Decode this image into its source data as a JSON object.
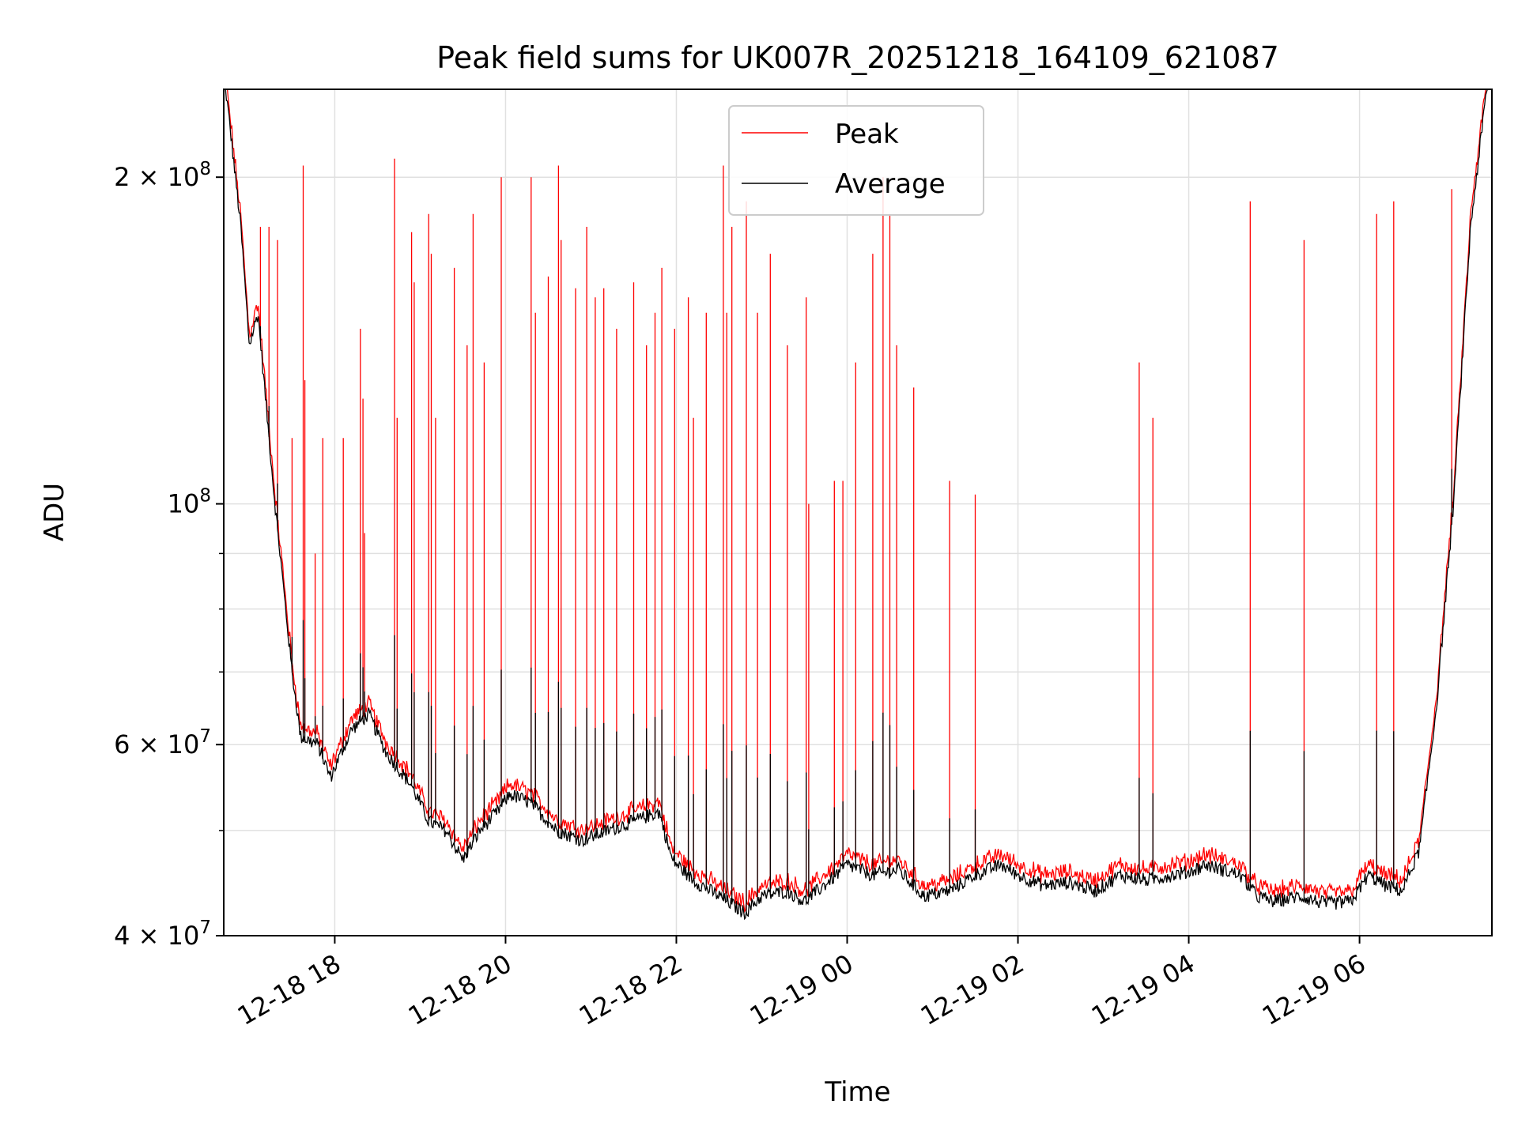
{
  "chart_data": {
    "type": "line",
    "title": "Peak field sums for UK007R_20251218_164109_621087",
    "xlabel": "Time",
    "ylabel": "ADU",
    "yscale": "log",
    "xlim_hours": [
      16.7,
      31.55
    ],
    "ylim": [
      40000000,
      241000000
    ],
    "grid": true,
    "x_ticks": [
      {
        "hour": 18,
        "label": "12-18 18"
      },
      {
        "hour": 20,
        "label": "12-18 20"
      },
      {
        "hour": 22,
        "label": "12-18 22"
      },
      {
        "hour": 24,
        "label": "12-19 00"
      },
      {
        "hour": 26,
        "label": "12-19 02"
      },
      {
        "hour": 28,
        "label": "12-19 04"
      },
      {
        "hour": 30,
        "label": "12-19 06"
      }
    ],
    "y_ticks": [
      {
        "value": 40000000,
        "mant": "4",
        "exp": "7"
      },
      {
        "value": 60000000,
        "mant": "6",
        "exp": "7"
      },
      {
        "value": 100000000,
        "mant": "",
        "exp": "8"
      },
      {
        "value": 200000000,
        "mant": "2",
        "exp": "8"
      }
    ],
    "y_minor_ticks": [
      50000000,
      70000000,
      80000000,
      90000000
    ],
    "legend": {
      "position": "upper center",
      "entries": [
        {
          "name": "Peak",
          "color": "#ff0000"
        },
        {
          "name": "Average",
          "color": "#000000"
        }
      ]
    },
    "average_baseline": [
      [
        16.7,
        250000000
      ],
      [
        16.78,
        220000000
      ],
      [
        16.9,
        180000000
      ],
      [
        17.0,
        140000000
      ],
      [
        17.1,
        150000000
      ],
      [
        17.3,
        100000000
      ],
      [
        17.5,
        70000000
      ],
      [
        17.6,
        61000000
      ],
      [
        17.8,
        60000000
      ],
      [
        17.95,
        56000000
      ],
      [
        18.2,
        62000000
      ],
      [
        18.4,
        64000000
      ],
      [
        18.6,
        59000000
      ],
      [
        18.9,
        55000000
      ],
      [
        19.1,
        51000000
      ],
      [
        19.3,
        50000000
      ],
      [
        19.5,
        47000000
      ],
      [
        19.7,
        50000000
      ],
      [
        19.9,
        52000000
      ],
      [
        20.05,
        54000000
      ],
      [
        20.3,
        53000000
      ],
      [
        20.6,
        50000000
      ],
      [
        20.9,
        49000000
      ],
      [
        21.2,
        50000000
      ],
      [
        21.5,
        51000000
      ],
      [
        21.8,
        52000000
      ],
      [
        21.95,
        47000000
      ],
      [
        22.2,
        45000000
      ],
      [
        22.5,
        43500000
      ],
      [
        22.8,
        42000000
      ],
      [
        23.0,
        43500000
      ],
      [
        23.3,
        44000000
      ],
      [
        23.5,
        43000000
      ],
      [
        23.8,
        45000000
      ],
      [
        24.0,
        46500000
      ],
      [
        24.3,
        45500000
      ],
      [
        24.6,
        46000000
      ],
      [
        24.9,
        43500000
      ],
      [
        25.2,
        44000000
      ],
      [
        25.5,
        45500000
      ],
      [
        25.8,
        46500000
      ],
      [
        26.0,
        45500000
      ],
      [
        26.3,
        44500000
      ],
      [
        26.6,
        44800000
      ],
      [
        26.9,
        44000000
      ],
      [
        27.2,
        45500000
      ],
      [
        27.5,
        45000000
      ],
      [
        27.8,
        45500000
      ],
      [
        28.0,
        45800000
      ],
      [
        28.2,
        46500000
      ],
      [
        28.4,
        46000000
      ],
      [
        28.6,
        45500000
      ],
      [
        28.8,
        43500000
      ],
      [
        29.0,
        43000000
      ],
      [
        29.3,
        43500000
      ],
      [
        29.6,
        42800000
      ],
      [
        29.9,
        43000000
      ],
      [
        30.1,
        45500000
      ],
      [
        30.3,
        44500000
      ],
      [
        30.5,
        44000000
      ],
      [
        30.7,
        48000000
      ],
      [
        30.9,
        65000000
      ],
      [
        31.1,
        100000000
      ],
      [
        31.3,
        180000000
      ],
      [
        31.5,
        245000000
      ]
    ],
    "peak_spikes": [
      [
        17.13,
        180000000
      ],
      [
        17.23,
        180000000
      ],
      [
        17.33,
        175000000
      ],
      [
        17.5,
        115000000
      ],
      [
        17.63,
        205000000
      ],
      [
        17.65,
        130000000
      ],
      [
        17.77,
        90000000
      ],
      [
        17.86,
        115000000
      ],
      [
        18.1,
        115000000
      ],
      [
        18.3,
        145000000
      ],
      [
        18.33,
        125000000
      ],
      [
        18.35,
        94000000
      ],
      [
        18.7,
        208000000
      ],
      [
        18.73,
        120000000
      ],
      [
        18.9,
        178000000
      ],
      [
        18.93,
        160000000
      ],
      [
        19.1,
        185000000
      ],
      [
        19.13,
        170000000
      ],
      [
        19.18,
        120000000
      ],
      [
        19.4,
        165000000
      ],
      [
        19.55,
        140000000
      ],
      [
        19.62,
        185000000
      ],
      [
        19.75,
        135000000
      ],
      [
        19.95,
        200000000
      ],
      [
        20.3,
        200000000
      ],
      [
        20.35,
        150000000
      ],
      [
        20.5,
        162000000
      ],
      [
        20.62,
        205000000
      ],
      [
        20.65,
        175000000
      ],
      [
        20.82,
        158000000
      ],
      [
        20.95,
        180000000
      ],
      [
        21.05,
        155000000
      ],
      [
        21.15,
        158000000
      ],
      [
        21.3,
        145000000
      ],
      [
        21.5,
        160000000
      ],
      [
        21.65,
        140000000
      ],
      [
        21.75,
        150000000
      ],
      [
        21.83,
        165000000
      ],
      [
        21.98,
        145000000
      ],
      [
        22.14,
        155000000
      ],
      [
        22.2,
        120000000
      ],
      [
        22.35,
        150000000
      ],
      [
        22.55,
        205000000
      ],
      [
        22.59,
        150000000
      ],
      [
        22.65,
        180000000
      ],
      [
        22.82,
        190000000
      ],
      [
        22.95,
        150000000
      ],
      [
        23.1,
        170000000
      ],
      [
        23.3,
        140000000
      ],
      [
        23.52,
        155000000
      ],
      [
        23.55,
        100000000
      ],
      [
        23.85,
        105000000
      ],
      [
        23.95,
        105000000
      ],
      [
        24.1,
        135000000
      ],
      [
        24.3,
        170000000
      ],
      [
        24.42,
        200000000
      ],
      [
        24.5,
        185000000
      ],
      [
        24.58,
        140000000
      ],
      [
        24.78,
        128000000
      ],
      [
        25.2,
        105000000
      ],
      [
        25.5,
        102000000
      ],
      [
        27.42,
        135000000
      ],
      [
        27.58,
        120000000
      ],
      [
        28.72,
        190000000
      ],
      [
        29.35,
        175000000
      ],
      [
        30.2,
        185000000
      ],
      [
        30.4,
        190000000
      ],
      [
        31.08,
        195000000
      ]
    ]
  }
}
